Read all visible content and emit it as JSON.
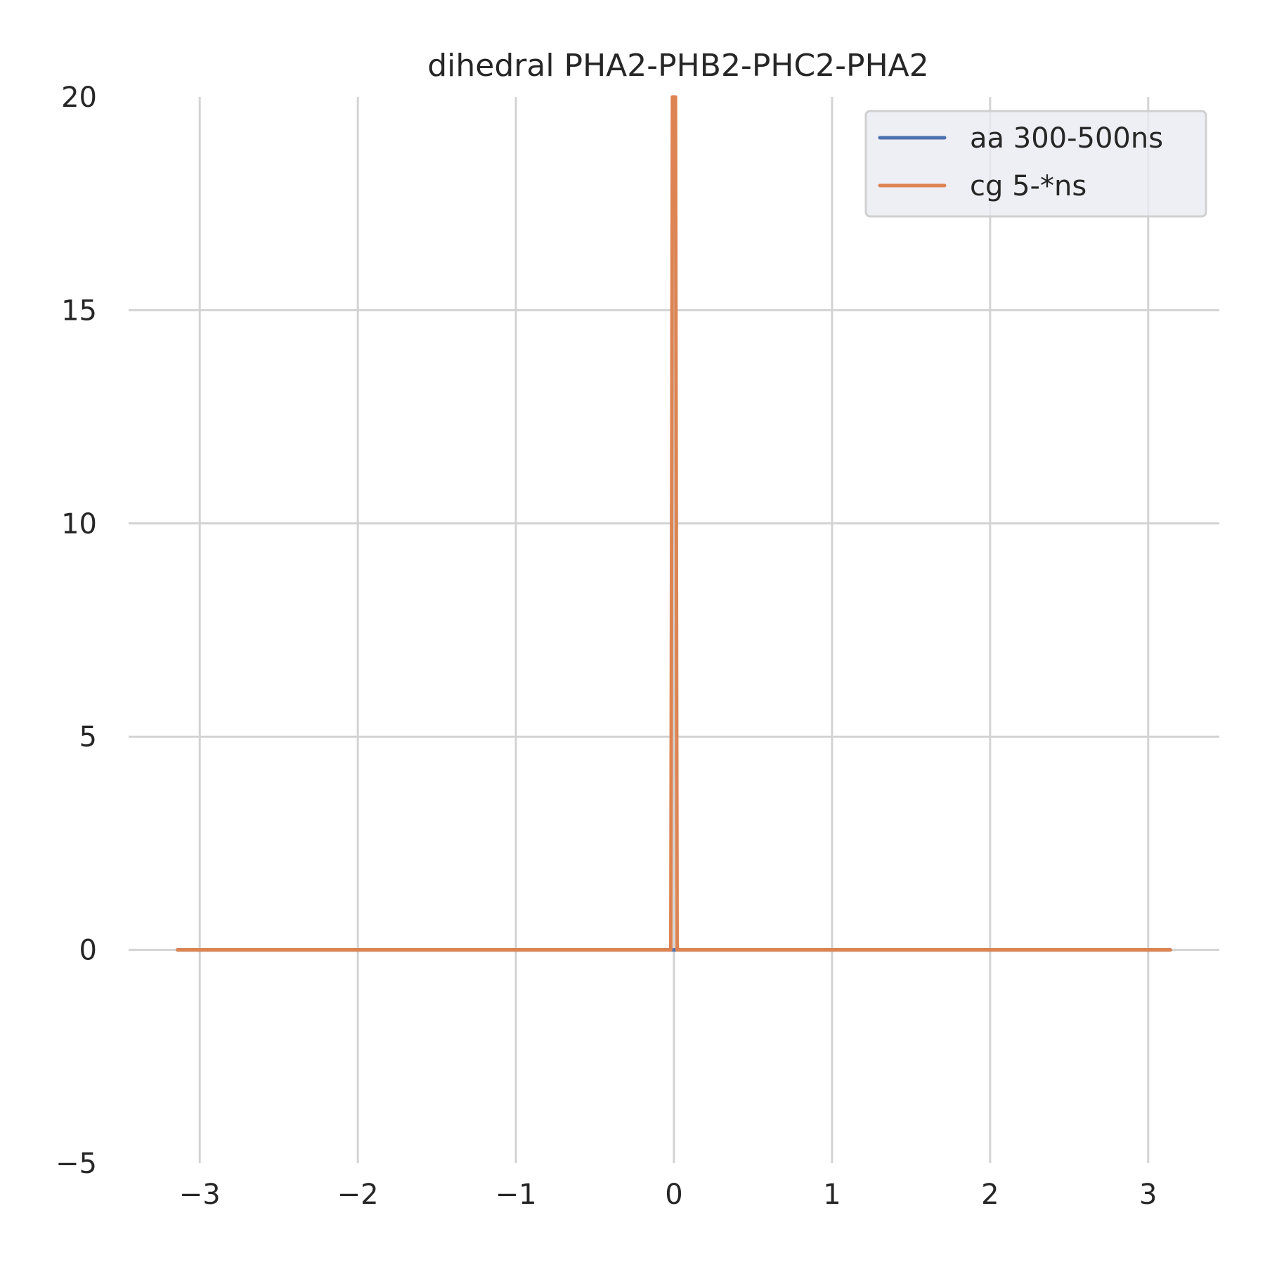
{
  "chart_data": {
    "type": "line",
    "title": "dihedral PHA2-PHB2-PHC2-PHA2",
    "xlabel": "",
    "ylabel": "",
    "xlim": [
      -3.45,
      3.45
    ],
    "ylim": [
      -5,
      20
    ],
    "x_ticks": [
      -3,
      -2,
      -1,
      0,
      1,
      2,
      3
    ],
    "x_tick_labels": [
      "−3",
      "−2",
      "−1",
      "0",
      "1",
      "2",
      "3"
    ],
    "y_ticks": [
      -5,
      0,
      5,
      10,
      15,
      20
    ],
    "y_tick_labels": [
      "−5",
      "0",
      "5",
      "10",
      "15",
      "20"
    ],
    "grid": true,
    "legend_position": "top-right",
    "series": [
      {
        "name": "aa 300-500ns",
        "color": "#4c72b0",
        "x": [
          -3.14,
          -0.02,
          0.02,
          3.14
        ],
        "y": [
          0,
          0,
          0,
          0
        ]
      },
      {
        "name": "cg 5-*ns",
        "color": "#dd8452",
        "x": [
          -3.14,
          -0.02,
          -0.01,
          0.01,
          0.02,
          3.14
        ],
        "y": [
          0,
          0,
          20,
          20,
          0,
          0
        ]
      }
    ]
  }
}
